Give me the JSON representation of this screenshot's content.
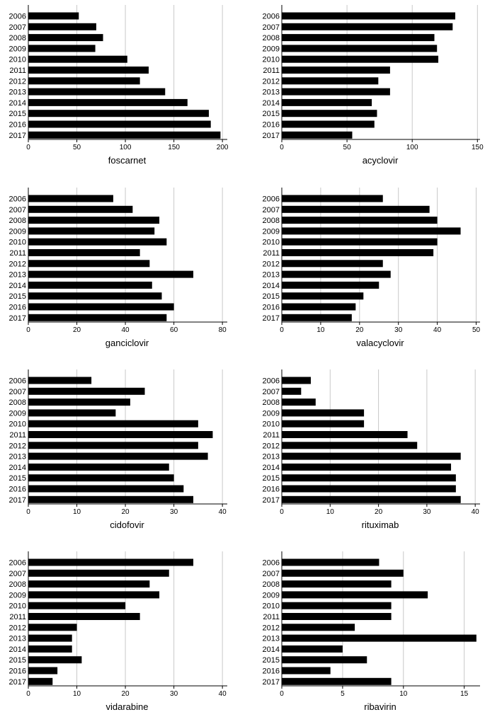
{
  "chart_data": [
    {
      "type": "bar",
      "orientation": "horizontal",
      "title": "foscarnet",
      "categories": [
        "2006",
        "2007",
        "2008",
        "2009",
        "2010",
        "2011",
        "2012",
        "2013",
        "2014",
        "2015",
        "2016",
        "2017"
      ],
      "values": [
        52,
        70,
        77,
        69,
        102,
        124,
        115,
        141,
        164,
        186,
        188,
        198
      ],
      "xlim": [
        0,
        205
      ],
      "xticks": [
        0,
        50,
        100,
        150,
        200
      ],
      "grid": "vertical",
      "bar_color": "#000000"
    },
    {
      "type": "bar",
      "orientation": "horizontal",
      "title": "acyclovir",
      "categories": [
        "2006",
        "2007",
        "2008",
        "2009",
        "2010",
        "2011",
        "2012",
        "2013",
        "2014",
        "2015",
        "2016",
        "2017"
      ],
      "values": [
        133,
        131,
        117,
        119,
        120,
        83,
        74,
        83,
        69,
        73,
        71,
        54
      ],
      "xlim": [
        0,
        152
      ],
      "xticks": [
        0,
        50,
        100,
        150
      ],
      "grid": "vertical",
      "bar_color": "#000000"
    },
    {
      "type": "bar",
      "orientation": "horizontal",
      "title": "ganciclovir",
      "categories": [
        "2006",
        "2007",
        "2008",
        "2009",
        "2010",
        "2011",
        "2012",
        "2013",
        "2014",
        "2015",
        "2016",
        "2017"
      ],
      "values": [
        35,
        43,
        54,
        52,
        57,
        46,
        50,
        68,
        51,
        55,
        60,
        57
      ],
      "xlim": [
        0,
        82
      ],
      "xticks": [
        0,
        20,
        40,
        60,
        80
      ],
      "grid": "vertical",
      "bar_color": "#000000"
    },
    {
      "type": "bar",
      "orientation": "horizontal",
      "title": "valacyclovir",
      "categories": [
        "2006",
        "2007",
        "2008",
        "2009",
        "2010",
        "2011",
        "2012",
        "2013",
        "2014",
        "2015",
        "2016",
        "2017"
      ],
      "values": [
        26,
        38,
        40,
        46,
        40,
        39,
        26,
        28,
        25,
        21,
        19,
        18
      ],
      "xlim": [
        0,
        51
      ],
      "xticks": [
        0,
        10,
        20,
        30,
        40,
        50
      ],
      "grid": "vertical",
      "bar_color": "#000000"
    },
    {
      "type": "bar",
      "orientation": "horizontal",
      "title": "cidofovir",
      "categories": [
        "2006",
        "2007",
        "2008",
        "2009",
        "2010",
        "2011",
        "2012",
        "2013",
        "2014",
        "2015",
        "2016",
        "2017"
      ],
      "values": [
        13,
        24,
        21,
        18,
        35,
        38,
        35,
        37,
        29,
        30,
        32,
        34
      ],
      "xlim": [
        0,
        41
      ],
      "xticks": [
        0,
        10,
        20,
        30,
        40
      ],
      "grid": "vertical",
      "bar_color": "#000000"
    },
    {
      "type": "bar",
      "orientation": "horizontal",
      "title": "rituximab",
      "categories": [
        "2006",
        "2007",
        "2008",
        "2009",
        "2010",
        "2011",
        "2012",
        "2013",
        "2014",
        "2015",
        "2016",
        "2017"
      ],
      "values": [
        6,
        4,
        7,
        17,
        17,
        26,
        28,
        37,
        35,
        36,
        36,
        37
      ],
      "xlim": [
        0,
        41
      ],
      "xticks": [
        0,
        10,
        20,
        30,
        40
      ],
      "grid": "vertical",
      "bar_color": "#000000"
    },
    {
      "type": "bar",
      "orientation": "horizontal",
      "title": "vidarabine",
      "categories": [
        "2006",
        "2007",
        "2008",
        "2009",
        "2010",
        "2011",
        "2012",
        "2013",
        "2014",
        "2015",
        "2016",
        "2017"
      ],
      "values": [
        34,
        29,
        25,
        27,
        20,
        23,
        10,
        9,
        9,
        11,
        6,
        5
      ],
      "xlim": [
        0,
        41
      ],
      "xticks": [
        0,
        10,
        20,
        30,
        40
      ],
      "grid": "vertical",
      "bar_color": "#000000"
    },
    {
      "type": "bar",
      "orientation": "horizontal",
      "title": "ribavirin",
      "categories": [
        "2006",
        "2007",
        "2008",
        "2009",
        "2010",
        "2011",
        "2012",
        "2013",
        "2014",
        "2015",
        "2016",
        "2017"
      ],
      "values": [
        8,
        10,
        9,
        12,
        9,
        9,
        6,
        16,
        5,
        7,
        4,
        9
      ],
      "xlim": [
        0,
        16.3
      ],
      "xticks": [
        0,
        5,
        10,
        15
      ],
      "grid": "vertical",
      "bar_color": "#000000"
    }
  ]
}
